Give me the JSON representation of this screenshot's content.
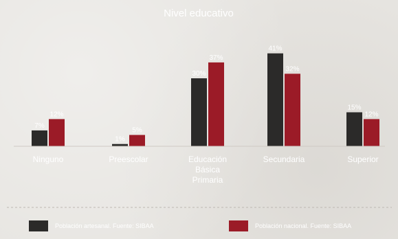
{
  "chart_data": {
    "type": "bar",
    "title": "Nivel educativo",
    "categories": [
      "Ninguno",
      "Preescolar",
      "Educación\nBásica\nPrimaria",
      "Secundaria",
      "Superior"
    ],
    "series": [
      {
        "name": "Población artesanal. Fuente: SIBAA",
        "color": "#2b2a29",
        "values": [
          7,
          1,
          30,
          41,
          15
        ],
        "labels": [
          "7%",
          "1%",
          "30%",
          "41%",
          "15%"
        ]
      },
      {
        "name": "Población nacional. Fuente: SIBAA",
        "color": "#9b1b27",
        "values": [
          12,
          5,
          37,
          32,
          12
        ],
        "labels": [
          "12%",
          "5%",
          "37%",
          "32%",
          "12%"
        ]
      }
    ],
    "ylim": [
      0,
      45
    ],
    "grid": false,
    "legend": "bottom"
  }
}
